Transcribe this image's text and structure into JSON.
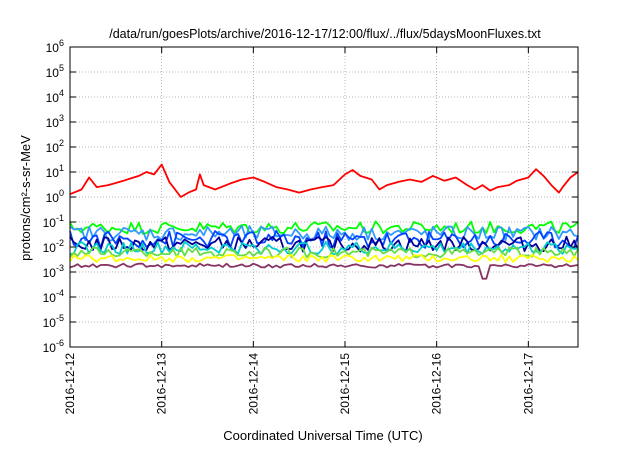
{
  "chart_data": {
    "type": "line",
    "title": "/data/run/goesPlots/archive/2016-12-17/12:00/flux/../flux/5daysMoonFluxes.txt",
    "xlabel": "Coordinated Universal Time (UTC)",
    "ylabel": "protons/cm²-s-sr-MeV",
    "yscale": "log",
    "ylim": [
      1e-06,
      1000000.0
    ],
    "xlim": [
      "2016-12-12",
      "2016-12-17 13:00"
    ],
    "grid": true,
    "legend": "none",
    "x_ticks": [
      "2016-12-12",
      "2016-12-13",
      "2016-12-14",
      "2016-12-15",
      "2016-12-16",
      "2016-12-17"
    ],
    "y_ticks": [
      {
        "base": "10",
        "exp": "6"
      },
      {
        "base": "10",
        "exp": "5"
      },
      {
        "base": "10",
        "exp": "4"
      },
      {
        "base": "10",
        "exp": "3"
      },
      {
        "base": "10",
        "exp": "2"
      },
      {
        "base": "10",
        "exp": "1"
      },
      {
        "base": "10",
        "exp": "0"
      },
      {
        "base": "10",
        "exp": "-1"
      },
      {
        "base": "10",
        "exp": "-2"
      },
      {
        "base": "10",
        "exp": "-3"
      },
      {
        "base": "10",
        "exp": "-4"
      },
      {
        "base": "10",
        "exp": "-5"
      },
      {
        "base": "10",
        "exp": "-6"
      }
    ],
    "series": [
      {
        "color": "#ff0000",
        "points": [
          [
            "2016-12-12 00:00",
            1.3
          ],
          [
            "2016-12-12 03:00",
            2.0
          ],
          [
            "2016-12-12 05:00",
            6.0
          ],
          [
            "2016-12-12 07:00",
            2.5
          ],
          [
            "2016-12-12 10:00",
            3.0
          ],
          [
            "2016-12-12 14:00",
            4.5
          ],
          [
            "2016-12-12 18:00",
            7.0
          ],
          [
            "2016-12-12 20:00",
            10
          ],
          [
            "2016-12-12 22:00",
            8.0
          ],
          [
            "2016-12-13 00:00",
            20
          ],
          [
            "2016-12-13 02:00",
            4.0
          ],
          [
            "2016-12-13 05:00",
            1.0
          ],
          [
            "2016-12-13 07:00",
            1.5
          ],
          [
            "2016-12-13 09:00",
            2.0
          ],
          [
            "2016-12-13 10:00",
            8.0
          ],
          [
            "2016-12-13 11:00",
            3.0
          ],
          [
            "2016-12-13 14:00",
            2.0
          ],
          [
            "2016-12-13 18:00",
            3.5
          ],
          [
            "2016-12-13 21:00",
            5.0
          ],
          [
            "2016-12-14 00:00",
            6.0
          ],
          [
            "2016-12-14 03:00",
            4.0
          ],
          [
            "2016-12-14 06:00",
            2.5
          ],
          [
            "2016-12-14 09:00",
            2.0
          ],
          [
            "2016-12-14 12:00",
            1.5
          ],
          [
            "2016-12-14 15:00",
            2.0
          ],
          [
            "2016-12-14 18:00",
            2.5
          ],
          [
            "2016-12-14 21:00",
            3.0
          ],
          [
            "2016-12-15 00:00",
            8.0
          ],
          [
            "2016-12-15 02:00",
            12
          ],
          [
            "2016-12-15 04:00",
            7.0
          ],
          [
            "2016-12-15 07:00",
            5.0
          ],
          [
            "2016-12-15 09:00",
            2.0
          ],
          [
            "2016-12-15 11:00",
            3.0
          ],
          [
            "2016-12-15 14:00",
            4.0
          ],
          [
            "2016-12-15 17:00",
            5.0
          ],
          [
            "2016-12-15 20:00",
            4.0
          ],
          [
            "2016-12-15 23:00",
            7.0
          ],
          [
            "2016-12-16 02:00",
            4.5
          ],
          [
            "2016-12-16 05:00",
            6.0
          ],
          [
            "2016-12-16 08:00",
            3.0
          ],
          [
            "2016-12-16 10:00",
            2.0
          ],
          [
            "2016-12-16 12:00",
            3.0
          ],
          [
            "2016-12-16 14:00",
            1.8
          ],
          [
            "2016-12-16 16:00",
            2.5
          ],
          [
            "2016-12-16 19:00",
            3.0
          ],
          [
            "2016-12-16 21:00",
            4.5
          ],
          [
            "2016-12-17 00:00",
            6.0
          ],
          [
            "2016-12-17 02:00",
            13
          ],
          [
            "2016-12-17 04:00",
            7.0
          ],
          [
            "2016-12-17 06:00",
            3.0
          ],
          [
            "2016-12-17 08:00",
            1.5
          ],
          [
            "2016-12-17 09:00",
            2.5
          ],
          [
            "2016-12-17 11:00",
            6.0
          ],
          [
            "2016-12-17 13:00",
            10
          ]
        ]
      },
      {
        "color": "#00ff00",
        "base": 0.06,
        "variation": 0.25,
        "points": []
      },
      {
        "color": "#3399ff",
        "base": 0.035,
        "variation": 0.3,
        "points": []
      },
      {
        "color": "#0044ff",
        "base": 0.02,
        "variation": 0.35,
        "points": []
      },
      {
        "color": "#000099",
        "base": 0.013,
        "variation": 0.3,
        "points": []
      },
      {
        "color": "#00cccc",
        "base": 0.009,
        "variation": 0.25,
        "points": []
      },
      {
        "color": "#66dd44",
        "base": 0.006,
        "variation": 0.2,
        "points": []
      },
      {
        "color": "#ffff00",
        "base": 0.0035,
        "variation": 0.15,
        "points": []
      },
      {
        "color": "#883366",
        "base": 0.0018,
        "variation": 0.08,
        "points": []
      }
    ],
    "colors": {
      "background": "#ffffff",
      "axis": "#000000",
      "grid": "#a0a0a0"
    }
  }
}
